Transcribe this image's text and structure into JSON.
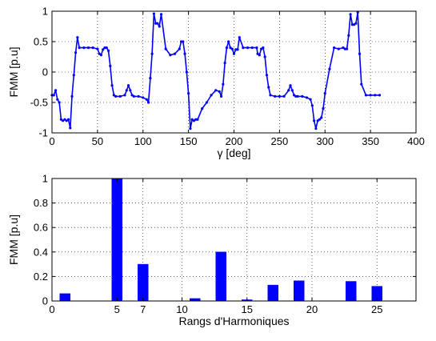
{
  "chart_data": [
    {
      "type": "line",
      "xlabel": "γ [deg]",
      "ylabel": "FMM [p.u]",
      "xlim": [
        0,
        400
      ],
      "ylim": [
        -1,
        1
      ],
      "xticks": [
        0,
        50,
        100,
        150,
        200,
        250,
        300,
        350,
        400
      ],
      "yticks": [
        -1,
        -0.5,
        0,
        0.5,
        1
      ],
      "xtick_labels": [
        "0",
        "50",
        "100",
        "150",
        "200",
        "250",
        "300",
        "350",
        "400"
      ],
      "ytick_labels": [
        "-1",
        "-0.5",
        "0",
        "0.5",
        "1"
      ],
      "grid": true,
      "marker": ".",
      "series": [
        {
          "color": "#0000ff",
          "x": [
            0,
            2,
            4,
            6,
            8,
            10,
            12,
            14,
            16,
            18,
            20,
            22,
            24,
            26,
            28,
            30,
            35,
            40,
            45,
            50,
            52,
            54,
            56,
            58,
            60,
            62,
            64,
            66,
            68,
            70,
            75,
            80,
            82,
            84,
            86,
            88,
            90,
            95,
            100,
            104,
            106,
            108,
            110,
            112,
            114,
            116,
            118,
            120,
            125,
            130,
            135,
            140,
            142,
            144,
            146,
            148,
            150,
            152,
            154,
            156,
            158,
            160,
            165,
            170,
            175,
            180,
            184,
            186,
            188,
            190,
            192,
            194,
            196,
            198,
            200,
            202,
            204,
            206,
            210,
            215,
            220,
            225,
            226,
            228,
            230,
            232,
            234,
            236,
            238,
            240,
            245,
            250,
            255,
            260,
            262,
            264,
            266,
            268,
            270,
            275,
            280,
            284,
            286,
            288,
            290,
            292,
            294,
            296,
            298,
            300,
            305,
            310,
            315,
            320,
            322,
            324,
            326,
            328,
            330,
            332,
            334,
            336,
            338,
            340,
            345,
            350,
            355,
            360
          ],
          "y": [
            -0.38,
            -0.38,
            -0.3,
            -0.45,
            -0.5,
            -0.78,
            -0.8,
            -0.78,
            -0.8,
            -0.78,
            -0.92,
            -0.4,
            -0.05,
            0.32,
            0.57,
            0.4,
            0.4,
            0.4,
            0.4,
            0.38,
            0.3,
            0.28,
            0.37,
            0.4,
            0.4,
            0.35,
            0.1,
            -0.22,
            -0.38,
            -0.4,
            -0.4,
            -0.38,
            -0.3,
            -0.22,
            -0.3,
            -0.38,
            -0.4,
            -0.4,
            -0.42,
            -0.45,
            -0.5,
            -0.1,
            0.3,
            0.96,
            0.8,
            0.8,
            0.75,
            0.95,
            0.38,
            0.28,
            0.3,
            0.38,
            0.5,
            0.5,
            0.3,
            0.0,
            -0.35,
            -0.93,
            -0.78,
            -0.8,
            -0.78,
            -0.78,
            -0.6,
            -0.5,
            -0.38,
            -0.3,
            -0.32,
            -0.4,
            -0.2,
            0.15,
            0.4,
            0.5,
            0.4,
            0.38,
            0.3,
            0.37,
            0.37,
            0.57,
            0.4,
            0.4,
            0.4,
            0.4,
            0.3,
            0.28,
            0.38,
            0.4,
            0.25,
            -0.05,
            -0.25,
            -0.38,
            -0.4,
            -0.4,
            -0.4,
            -0.3,
            -0.22,
            -0.3,
            -0.38,
            -0.4,
            -0.4,
            -0.4,
            -0.42,
            -0.45,
            -0.55,
            -0.8,
            -0.93,
            -0.8,
            -0.78,
            -0.75,
            -0.6,
            -0.35,
            0.05,
            0.4,
            0.38,
            0.4,
            0.38,
            0.38,
            0.6,
            0.95,
            0.78,
            0.78,
            0.8,
            0.98,
            0.3,
            -0.2,
            -0.38,
            -0.38,
            -0.38,
            -0.38
          ]
        }
      ]
    },
    {
      "type": "bar",
      "xlabel": "Rangs d'Harmoniques",
      "ylabel": "FMM [p.u]",
      "xlim": [
        0,
        28
      ],
      "ylim": [
        0,
        1
      ],
      "xticks": [
        0,
        5,
        7,
        10,
        15,
        20,
        25
      ],
      "yticks": [
        0,
        0.2,
        0.4,
        0.6,
        0.8,
        1
      ],
      "xtick_labels": [
        "0",
        "5",
        "7",
        "10",
        "15",
        "20",
        "25"
      ],
      "ytick_labels": [
        "0",
        "0.2",
        "0.4",
        "0.6",
        "0.8",
        "1"
      ],
      "grid": true,
      "series": [
        {
          "color": "#0000ff",
          "x": [
            1,
            5,
            7,
            11,
            13,
            15,
            17,
            19,
            23,
            25
          ],
          "values": [
            0.06,
            1.0,
            0.3,
            0.02,
            0.4,
            0.01,
            0.13,
            0.165,
            0.16,
            0.12
          ]
        }
      ]
    }
  ]
}
